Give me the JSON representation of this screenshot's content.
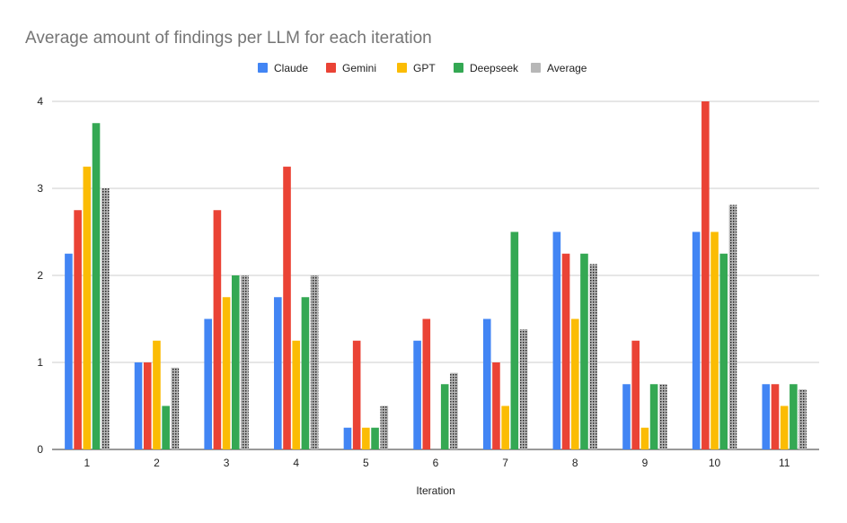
{
  "chart_data": {
    "type": "bar",
    "title": "Average amount of findings per LLM for each iteration",
    "xlabel": "Iteration",
    "ylabel": "",
    "ylim": [
      0,
      4
    ],
    "yticks": [
      "0",
      "1",
      "2",
      "3",
      "4"
    ],
    "categories": [
      "1",
      "2",
      "3",
      "4",
      "5",
      "6",
      "7",
      "8",
      "9",
      "10",
      "11"
    ],
    "legend_position": "top",
    "grid": true,
    "series": [
      {
        "name": "Claude",
        "color": "#4285f4",
        "values": [
          2.25,
          1.0,
          1.5,
          1.75,
          0.25,
          1.25,
          1.5,
          2.5,
          0.75,
          2.5,
          0.75
        ]
      },
      {
        "name": "Gemini",
        "color": "#ea4335",
        "values": [
          2.75,
          1.0,
          2.75,
          3.25,
          1.25,
          1.5,
          1.0,
          2.25,
          1.25,
          4.0,
          0.75
        ]
      },
      {
        "name": "GPT",
        "color": "#fbbc04",
        "values": [
          3.25,
          1.25,
          1.75,
          1.25,
          0.25,
          0.0,
          0.5,
          1.5,
          0.25,
          2.5,
          0.5
        ]
      },
      {
        "name": "Deepseek",
        "color": "#34a853",
        "values": [
          3.75,
          0.5,
          2.0,
          1.75,
          0.25,
          0.75,
          2.5,
          2.25,
          0.75,
          2.25,
          0.75
        ]
      },
      {
        "name": "Average",
        "color": "#b7b7b7",
        "dotted": true,
        "values": [
          3.0,
          0.94,
          2.0,
          2.0,
          0.5,
          0.88,
          1.38,
          2.13,
          0.75,
          2.81,
          0.69
        ]
      }
    ]
  }
}
